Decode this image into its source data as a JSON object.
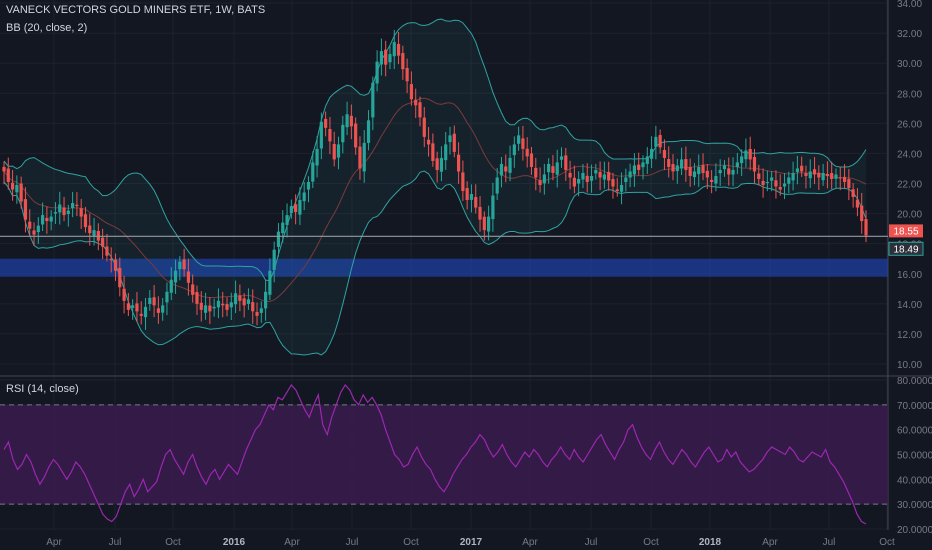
{
  "header": {
    "symbol_title": "VANECK VECTORS GOLD MINERS ETF, 1W, BATS",
    "bb_label": "BB (20, close, 2)",
    "rsi_label": "RSI (14, close)"
  },
  "colors": {
    "background": "#131722",
    "up": "#26a69a",
    "down": "#ef5350",
    "bb_band": "#2fa3a0",
    "bb_basis": "#7a3b3b",
    "support_zone": "#1e3fa0",
    "rsi_line": "#9c27b0",
    "rsi_band": "#3a1b4e"
  },
  "price_axis": {
    "ticks": [
      "34.00",
      "32.00",
      "30.00",
      "28.00",
      "26.00",
      "24.00",
      "22.00",
      "20.00",
      "18.00",
      "16.00",
      "14.00",
      "12.00",
      "10.00"
    ],
    "last_price": "18.55",
    "line_price": "18.49"
  },
  "rsi_axis": {
    "ticks": [
      "80.0000",
      "70.0000",
      "60.0000",
      "50.0000",
      "40.0000",
      "30.0000",
      "20.0000"
    ]
  },
  "time_axis": {
    "labels": [
      "Apr",
      "Jul",
      "Oct",
      "2016",
      "Apr",
      "Jul",
      "Oct",
      "2017",
      "Apr",
      "Jul",
      "Oct",
      "2018",
      "Apr",
      "Jul",
      "Oct"
    ],
    "bold_labels": [
      "2016",
      "2017",
      "2018"
    ]
  },
  "chart_data": [
    {
      "type": "candlestick",
      "title": "VANECK VECTORS GOLD MINERS ETF, 1W, BATS",
      "indicator": "BB (20, close, 2)",
      "ylim": [
        10,
        34
      ],
      "x_range": [
        "2015-01-05",
        "2018-10-15"
      ],
      "support_zone": [
        15.8,
        17.0
      ],
      "horizontal_line": 18.49,
      "last_close": 18.55,
      "closes": [
        22.8,
        22.1,
        21.6,
        21.9,
        20.8,
        19.6,
        19.0,
        18.6,
        19.2,
        19.9,
        19.5,
        19.8,
        20.1,
        20.6,
        19.9,
        20.2,
        20.7,
        20.5,
        19.8,
        19.1,
        18.7,
        18.9,
        18.2,
        17.8,
        17.2,
        16.9,
        16.2,
        15.1,
        14.2,
        13.6,
        13.9,
        13.5,
        13.2,
        13.8,
        14.4,
        13.9,
        13.4,
        13.9,
        14.8,
        15.6,
        16.2,
        16.8,
        16.3,
        15.4,
        14.6,
        14.0,
        13.6,
        13.9,
        13.5,
        13.8,
        14.2,
        13.9,
        13.6,
        14.1,
        14.7,
        14.2,
        13.9,
        14.3,
        13.5,
        13.2,
        13.7,
        14.8,
        16.2,
        17.6,
        18.8,
        19.4,
        19.9,
        20.5,
        20.1,
        20.9,
        21.4,
        22.1,
        23.4,
        24.3,
        26.1,
        25.7,
        24.8,
        23.6,
        24.6,
        25.9,
        26.6,
        25.8,
        24.4,
        23.0,
        24.7,
        26.2,
        28.7,
        30.1,
        30.8,
        29.9,
        30.6,
        31.4,
        30.5,
        29.6,
        28.8,
        27.6,
        27.2,
        26.4,
        25.1,
        24.6,
        23.5,
        22.9,
        23.7,
        24.6,
        25.2,
        24.1,
        22.8,
        21.5,
        20.9,
        21.3,
        20.4,
        19.6,
        18.9,
        19.8,
        21.2,
        22.4,
        23.3,
        22.8,
        23.7,
        24.6,
        25.2,
        24.3,
        23.8,
        23.1,
        22.4,
        21.9,
        22.6,
        23.3,
        22.7,
        23.4,
        23.8,
        22.9,
        22.4,
        21.8,
        22.3,
        22.7,
        22.1,
        22.5,
        22.9,
        22.4,
        22.6,
        22.2,
        21.8,
        21.5,
        21.9,
        22.4,
        22.8,
        23.2,
        22.9,
        23.4,
        23.8,
        24.3,
        25.1,
        24.4,
        23.7,
        23.1,
        22.8,
        23.2,
        23.6,
        22.9,
        22.5,
        22.8,
        23.1,
        22.7,
        22.4,
        22.1,
        22.5,
        22.9,
        23.2,
        22.6,
        22.9,
        23.4,
        23.8,
        24.2,
        23.6,
        22.8,
        22.3,
        21.9,
        22.1,
        22.4,
        21.8,
        21.6,
        22.0,
        22.4,
        22.7,
        23.0,
        22.8,
        22.5,
        22.8,
        22.6,
        22.4,
        22.7,
        22.5,
        22.3,
        22.6,
        22.4,
        22.1,
        21.7,
        21.1,
        20.4,
        19.5,
        18.55
      ]
    },
    {
      "type": "line",
      "title": "RSI (14, close)",
      "ylim": [
        20,
        80
      ],
      "reference_lines": [
        70,
        30
      ],
      "values": [
        52,
        55,
        48,
        44,
        46,
        50,
        47,
        42,
        38,
        41,
        45,
        48,
        46,
        43,
        40,
        43,
        47,
        45,
        42,
        38,
        34,
        30,
        26,
        24,
        23,
        25,
        30,
        35,
        38,
        33,
        36,
        40,
        35,
        37,
        39,
        45,
        50,
        52,
        48,
        45,
        42,
        47,
        50,
        45,
        41,
        38,
        42,
        44,
        40,
        43,
        46,
        44,
        42,
        47,
        52,
        56,
        60,
        62,
        66,
        70,
        68,
        73,
        72,
        75,
        78,
        76,
        72,
        68,
        65,
        70,
        74,
        62,
        58,
        65,
        70,
        75,
        78,
        76,
        72,
        70,
        74,
        71,
        73,
        70,
        66,
        60,
        55,
        50,
        48,
        45,
        46,
        50,
        53,
        49,
        46,
        44,
        40,
        37,
        35,
        38,
        42,
        45,
        48,
        50,
        53,
        55,
        58,
        56,
        52,
        49,
        51,
        54,
        50,
        47,
        45,
        48,
        51,
        49,
        52,
        50,
        47,
        45,
        48,
        50,
        53,
        50,
        48,
        52,
        49,
        47,
        50,
        53,
        56,
        58,
        54,
        51,
        48,
        52,
        55,
        60,
        62,
        57,
        53,
        50,
        48,
        52,
        55,
        51,
        48,
        46,
        49,
        52,
        50,
        47,
        45,
        48,
        51,
        53,
        50,
        47,
        48,
        52,
        49,
        51,
        47,
        45,
        43,
        44,
        46,
        48,
        51,
        53,
        52,
        51,
        50,
        53,
        51,
        48,
        47,
        49,
        51,
        50,
        49,
        52,
        47,
        45,
        42,
        39,
        35,
        31,
        26,
        23,
        22
      ]
    }
  ]
}
